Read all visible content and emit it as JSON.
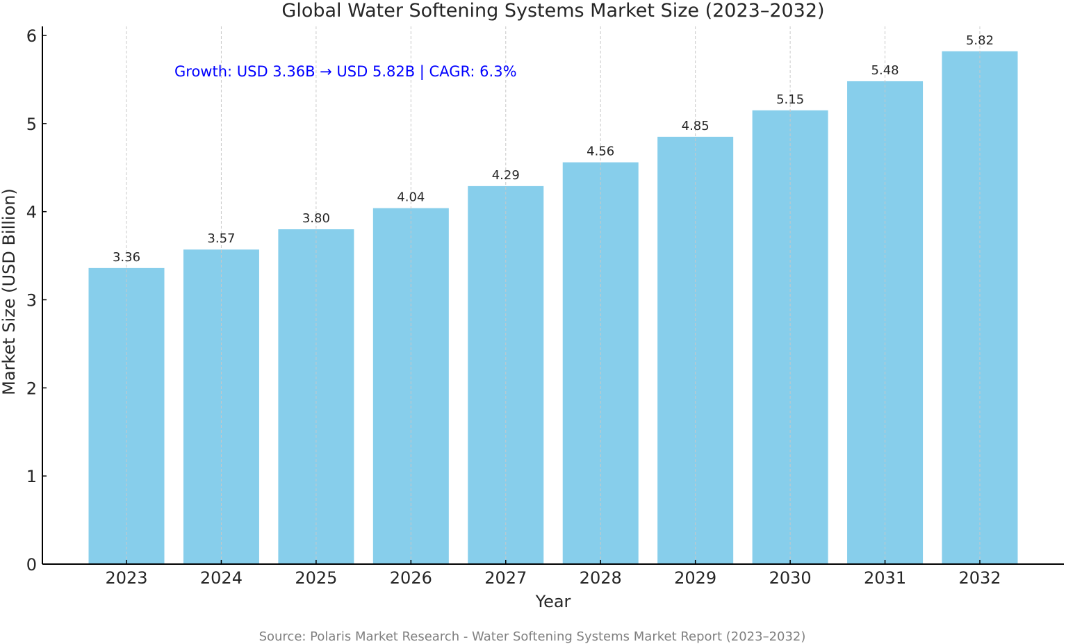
{
  "chart_data": {
    "type": "bar",
    "title": "Global Water Softening Systems Market Size (2023–2032)",
    "xlabel": "Year",
    "ylabel": "Market Size (USD Billion)",
    "categories": [
      "2023",
      "2024",
      "2025",
      "2026",
      "2027",
      "2028",
      "2029",
      "2030",
      "2031",
      "2032"
    ],
    "values": [
      3.36,
      3.57,
      3.8,
      4.04,
      4.29,
      4.56,
      4.85,
      5.15,
      5.48,
      5.82
    ],
    "data_labels": [
      "3.36",
      "3.57",
      "3.80",
      "4.04",
      "4.29",
      "4.56",
      "4.85",
      "5.15",
      "5.48",
      "5.82"
    ],
    "ylim": [
      0,
      6.1
    ],
    "yticks": [
      "0",
      "1",
      "2",
      "3",
      "4",
      "5",
      "6"
    ],
    "grid": "vertical dashed",
    "annotation": "Growth: USD 3.36B → USD 5.82B | CAGR: 6.3%",
    "source": "Source: Polaris Market Research - Water Softening Systems Market Report (2023–2032)",
    "colors": {
      "bar": "#87CEEB",
      "annotation": "#0000FF",
      "source": "#808080",
      "grid": "#c8c8c8"
    }
  }
}
